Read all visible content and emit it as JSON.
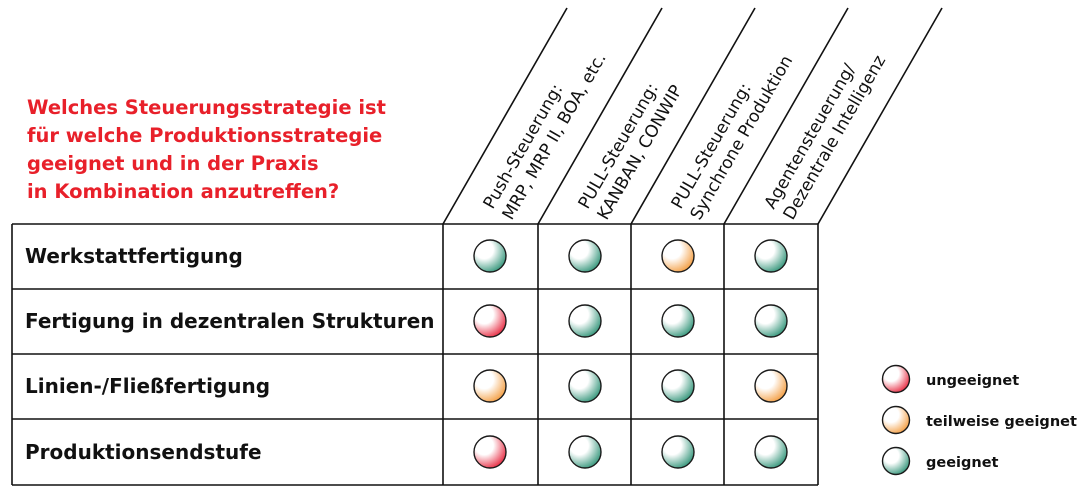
{
  "question": {
    "lines": [
      "Welches Steuerungsstrategie ist",
      "für welche Produktionsstrategie",
      "geeignet und in der Praxis",
      "in Kombination anzutreffen?"
    ]
  },
  "columns": [
    {
      "line1": "Push-Steuerung:",
      "line2": "MRP, MRP II, BOA, etc."
    },
    {
      "line1": "PULL-Steuerung:",
      "line2": "KANBAN, CONWIP"
    },
    {
      "line1": "PULL-Steuerung:",
      "line2": "Synchrone Produktion"
    },
    {
      "line1": "Agentensteuerung/",
      "line2": "Dezentrale Intelligenz"
    }
  ],
  "rows": [
    {
      "label": "Werkstattfertigung",
      "ratings": [
        "geeignet",
        "geeignet",
        "teilweise",
        "geeignet"
      ]
    },
    {
      "label": "Fertigung in dezentralen Strukturen",
      "ratings": [
        "ungeeignet",
        "geeignet",
        "geeignet",
        "geeignet"
      ]
    },
    {
      "label": "Linien-/Fließfertigung",
      "ratings": [
        "teilweise",
        "geeignet",
        "geeignet",
        "teilweise"
      ]
    },
    {
      "label": "Produktionsendstufe",
      "ratings": [
        "ungeeignet",
        "geeignet",
        "geeignet",
        "geeignet"
      ]
    }
  ],
  "legend": [
    {
      "key": "ungeeignet",
      "label": "ungeeignet"
    },
    {
      "key": "teilweise",
      "label": "teilweise geeignet"
    },
    {
      "key": "geeignet",
      "label": "geeignet"
    }
  ],
  "colors": {
    "ungeeignet": "#e8344a",
    "teilweise": "#f4a24a",
    "geeignet": "#3d9a80",
    "question": "#e8202a"
  }
}
